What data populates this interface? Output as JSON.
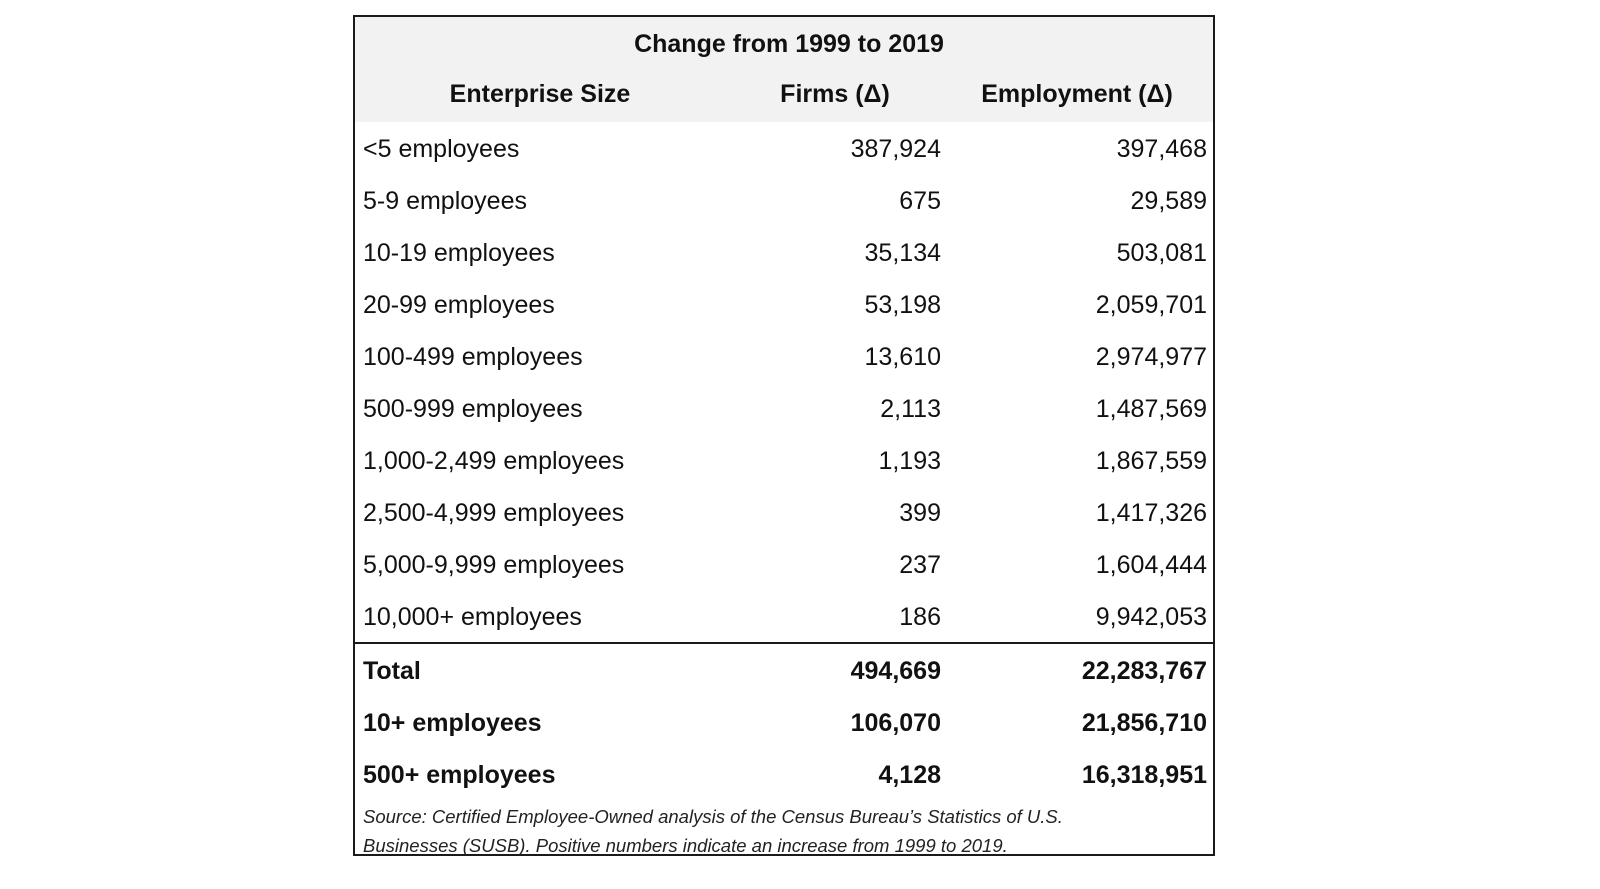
{
  "title": "Change from 1999 to 2019",
  "columns": [
    "Enterprise Size",
    "Firms (Δ)",
    "Employment (Δ)"
  ],
  "rows": [
    {
      "size": "<5 employees",
      "firms": "387,924",
      "employment": "397,468"
    },
    {
      "size": "5-9 employees",
      "firms": "675",
      "employment": "29,589"
    },
    {
      "size": "10-19 employees",
      "firms": "35,134",
      "employment": "503,081"
    },
    {
      "size": "20-99 employees",
      "firms": "53,198",
      "employment": "2,059,701"
    },
    {
      "size": "100-499 employees",
      "firms": "13,610",
      "employment": "2,974,977"
    },
    {
      "size": "500-999 employees",
      "firms": "2,113",
      "employment": "1,487,569"
    },
    {
      "size": "1,000-2,499 employees",
      "firms": "1,193",
      "employment": "1,867,559"
    },
    {
      "size": "2,500-4,999 employees",
      "firms": "399",
      "employment": "1,417,326"
    },
    {
      "size": "5,000-9,999 employees",
      "firms": "237",
      "employment": "1,604,444"
    },
    {
      "size": "10,000+ employees",
      "firms": "186",
      "employment": "9,942,053"
    }
  ],
  "summary": [
    {
      "size": "Total",
      "firms": "494,669",
      "employment": "22,283,767"
    },
    {
      "size": "10+ employees",
      "firms": "106,070",
      "employment": "21,856,710"
    },
    {
      "size": "500+ employees",
      "firms": "4,128",
      "employment": "16,318,951"
    }
  ],
  "note": {
    "line1": "Source: Certified Employee-Owned analysis of the Census Bureau’s Statistics of U.S.",
    "line2": "Businesses (SUSB). Positive numbers indicate an increase from 1999 to 2019."
  }
}
